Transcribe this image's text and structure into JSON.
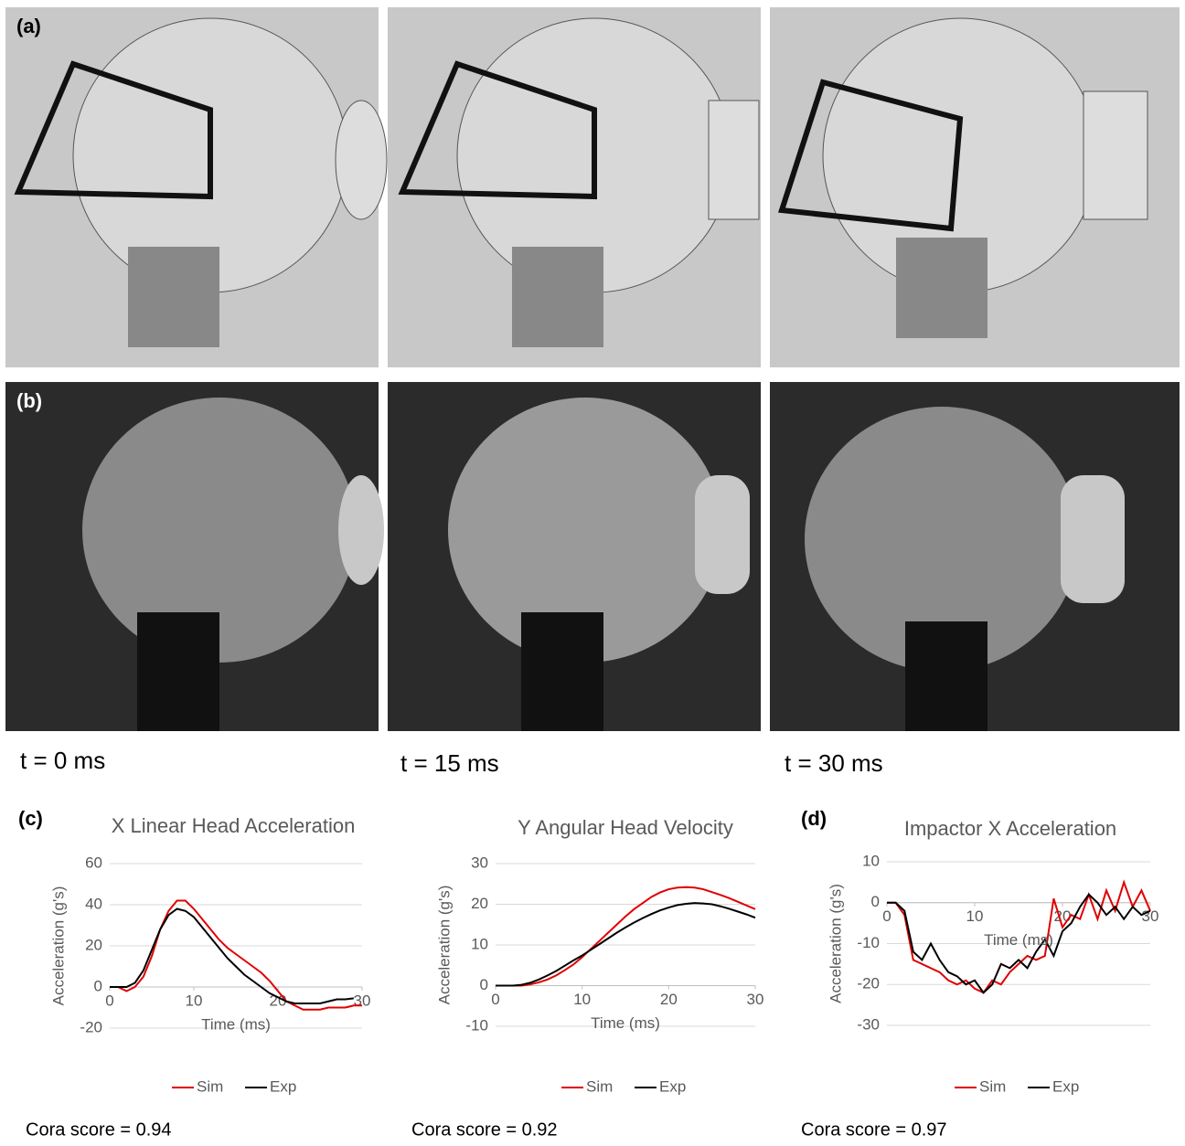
{
  "panel_labels": [
    "(a)",
    "(b)",
    "(c)",
    "(d)"
  ],
  "time_labels": [
    "t = 0 ms",
    "t = 15 ms",
    "t = 30 ms"
  ],
  "chart_data": [
    {
      "type": "line",
      "title": "X Linear Head Acceleration",
      "xlabel": "Time (ms)",
      "ylabel": "Acceleration (g's)",
      "x": [
        0,
        1,
        2,
        3,
        4,
        5,
        6,
        7,
        8,
        9,
        10,
        11,
        12,
        13,
        14,
        15,
        16,
        17,
        18,
        19,
        20,
        21,
        22,
        23,
        24,
        25,
        26,
        27,
        28,
        29,
        30
      ],
      "series": [
        {
          "name": "Sim",
          "color": "#e00000",
          "values": [
            0,
            0,
            -2,
            0,
            5,
            15,
            28,
            37,
            42,
            42,
            38,
            33,
            28,
            23,
            19,
            16,
            13,
            10,
            7,
            3,
            -2,
            -7,
            -9,
            -11,
            -11,
            -11,
            -10,
            -10,
            -10,
            -9,
            -9
          ]
        },
        {
          "name": "Exp",
          "color": "#000000",
          "values": [
            0,
            0,
            0,
            2,
            8,
            18,
            28,
            35,
            38,
            37,
            34,
            29,
            24,
            19,
            14,
            10,
            6,
            3,
            0,
            -3,
            -5,
            -7,
            -8,
            -8,
            -8,
            -8,
            -7,
            -6,
            -6,
            -5.5,
            null
          ]
        }
      ],
      "xlim": [
        0,
        30
      ],
      "ylim": [
        -20,
        60
      ],
      "xticks": [
        0,
        10,
        20,
        30
      ],
      "yticks": [
        -20,
        0,
        20,
        40,
        60
      ],
      "grid": true,
      "annotation": "Cora score = 0.94"
    },
    {
      "type": "line",
      "title": "Y Angular Head Velocity",
      "xlabel": "Time (ms)",
      "ylabel": "Acceleration (g's)",
      "x": [
        0,
        1,
        2,
        3,
        4,
        5,
        6,
        7,
        8,
        9,
        10,
        11,
        12,
        13,
        14,
        15,
        16,
        17,
        18,
        19,
        20,
        21,
        22,
        23,
        24,
        25,
        26,
        27,
        28,
        29,
        30
      ],
      "series": [
        {
          "name": "Sim",
          "color": "#e00000",
          "values": [
            0,
            0,
            0,
            0,
            0.3,
            0.8,
            1.5,
            2.5,
            3.8,
            5.2,
            7,
            9,
            11,
            13,
            15,
            17,
            18.8,
            20.3,
            21.8,
            22.9,
            23.7,
            24.1,
            24.2,
            24.1,
            23.7,
            23,
            22.3,
            21.5,
            20.6,
            19.7,
            18.8
          ]
        },
        {
          "name": "Exp",
          "color": "#000000",
          "values": [
            0,
            0,
            0,
            0.2,
            0.7,
            1.5,
            2.5,
            3.6,
            4.9,
            6.2,
            7.4,
            8.8,
            10.2,
            11.6,
            13,
            14.3,
            15.5,
            16.6,
            17.6,
            18.5,
            19.2,
            19.8,
            20.1,
            20.3,
            20.2,
            20,
            19.5,
            18.9,
            18.2,
            17.5,
            16.7
          ]
        }
      ],
      "xlim": [
        0,
        30
      ],
      "ylim": [
        -10,
        30
      ],
      "xticks": [
        0,
        10,
        20,
        30
      ],
      "yticks": [
        -10,
        0,
        10,
        20,
        30
      ],
      "grid": true,
      "annotation": "Cora score = 0.92"
    },
    {
      "type": "line",
      "title": "Impactor X Acceleration",
      "xlabel": "Time (ms)",
      "ylabel": "Acceleration (g's)",
      "x": [
        0,
        1,
        2,
        3,
        4,
        5,
        6,
        7,
        8,
        9,
        10,
        11,
        12,
        13,
        14,
        15,
        16,
        17,
        18,
        19,
        20,
        21,
        22,
        23,
        24,
        25,
        26,
        27,
        28,
        29,
        30
      ],
      "series": [
        {
          "name": "Sim",
          "color": "#e00000",
          "values": [
            0,
            0,
            -3,
            -14,
            -15,
            -16,
            -17,
            -19,
            -20,
            -19,
            -21,
            -22,
            -19,
            -20,
            -17,
            -15,
            -13,
            -14,
            -13,
            1,
            -6,
            -3,
            -4,
            2,
            -4,
            3,
            -2,
            5,
            -1,
            3,
            -2
          ]
        },
        {
          "name": "Exp",
          "color": "#000000",
          "values": [
            0,
            0,
            -2,
            -12,
            -14,
            -10,
            -14,
            -17,
            -18,
            -20,
            -19,
            -22,
            -20,
            -15,
            -16,
            -14,
            -16,
            -12,
            -9,
            -13,
            -7,
            -5,
            -1,
            2,
            0,
            -3,
            -1,
            -4,
            -1,
            -3,
            -2
          ]
        }
      ],
      "xlim": [
        0,
        30
      ],
      "ylim": [
        -30,
        10
      ],
      "xticks": [
        0,
        10,
        20,
        30
      ],
      "yticks": [
        -30,
        -20,
        -10,
        0,
        10
      ],
      "grid": true,
      "annotation": "Cora score = 0.97"
    }
  ]
}
